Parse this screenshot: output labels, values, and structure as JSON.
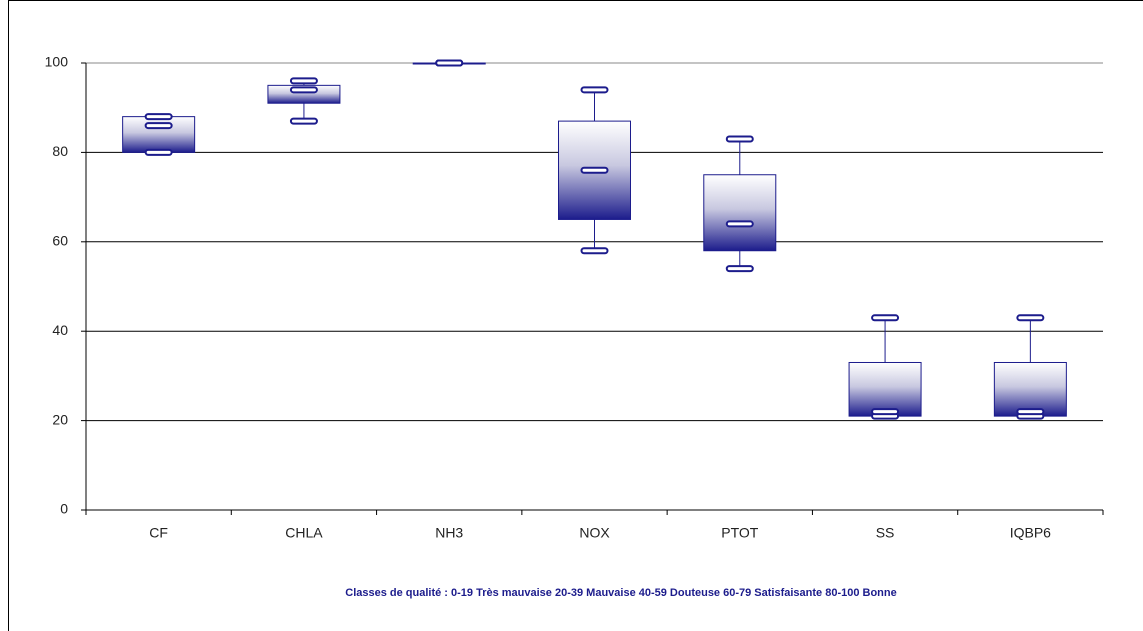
{
  "chart_data": {
    "type": "box",
    "categories": [
      "CF",
      "CHLA",
      "NH3",
      "NOX",
      "PTOT",
      "SS",
      "IQBP6"
    ],
    "min": [
      80,
      87,
      100,
      58,
      54,
      21,
      21
    ],
    "q1": [
      80,
      91,
      100,
      65,
      58,
      21,
      21
    ],
    "median": [
      86,
      94,
      100,
      76,
      64,
      22,
      22
    ],
    "q3": [
      88,
      95,
      100,
      87,
      75,
      33,
      33
    ],
    "max": [
      88,
      96,
      100,
      94,
      83,
      43,
      43
    ],
    "color": "#1c1c8c",
    "ylim": [
      0,
      100
    ],
    "yticks": [
      0,
      20,
      40,
      60,
      80,
      100
    ],
    "grid": true,
    "note": "Classes de qualité :  0-19 Très mauvaise   20-39 Mauvaise   40-59 Douteuse   60-79 Satisfaisante   80-100 Bonne"
  }
}
